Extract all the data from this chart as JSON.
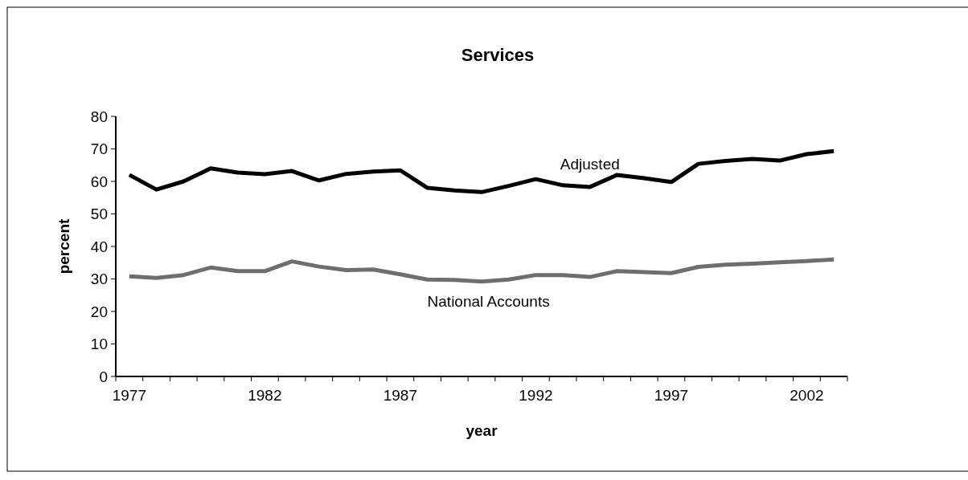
{
  "chart_data": {
    "type": "line",
    "title": "Services",
    "xlabel": "year",
    "ylabel": "percent",
    "categories": [
      "1977",
      null,
      null,
      null,
      null,
      "1982",
      null,
      null,
      null,
      null,
      "1987",
      null,
      null,
      null,
      null,
      "1992",
      null,
      null,
      null,
      null,
      "1997",
      null,
      null,
      null,
      null,
      "2002",
      null
    ],
    "series": [
      {
        "name": "Adjusted",
        "color": "#000000",
        "values": [
          62,
          57.5,
          60,
          64,
          62.7,
          62.2,
          63.2,
          60.3,
          62.3,
          63,
          63.4,
          58,
          57.2,
          56.7,
          58.6,
          60.7,
          58.8,
          58.3,
          62,
          61,
          59.8,
          65.4,
          66.3,
          66.9,
          66.4,
          68.4,
          69.3
        ]
      },
      {
        "name": "National Accounts",
        "color": "#6e6e6e",
        "values": [
          30.8,
          30.3,
          31.2,
          33.5,
          32.4,
          32.4,
          35.4,
          33.8,
          32.7,
          32.9,
          31.4,
          29.8,
          29.7,
          29.2,
          29.8,
          31.2,
          31.2,
          30.6,
          32.4,
          32.1,
          31.8,
          33.7,
          34.4,
          34.7,
          35.1,
          35.5,
          36
        ]
      }
    ],
    "ylim": [
      0,
      80
    ],
    "yticks": [
      0,
      10,
      20,
      30,
      40,
      50,
      60,
      70,
      80
    ],
    "grid": false,
    "legend": false,
    "marker": "none",
    "line_style": "solid"
  }
}
